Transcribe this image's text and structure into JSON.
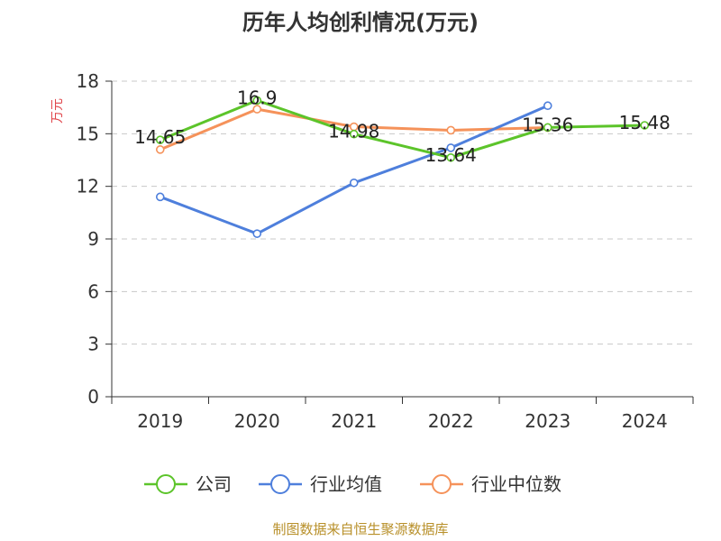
{
  "chart_data": {
    "type": "line",
    "title": "历年人均创利情况(万元)",
    "ylabel": "万元",
    "xlabel": "",
    "categories": [
      "2019",
      "2020",
      "2021",
      "2022",
      "2023",
      "2024"
    ],
    "ylim": [
      0,
      18
    ],
    "yticks": [
      0,
      3,
      6,
      9,
      12,
      15,
      18
    ],
    "grid": true,
    "legend_position": "bottom",
    "series": [
      {
        "name": "公司",
        "color": "#5cc42a",
        "values": [
          14.65,
          16.9,
          14.98,
          13.64,
          15.36,
          15.48
        ],
        "show_labels": true
      },
      {
        "name": "行业均值",
        "color": "#4e7fdc",
        "values": [
          11.4,
          9.3,
          12.2,
          14.2,
          16.6,
          null
        ],
        "show_labels": false
      },
      {
        "name": "行业中位数",
        "color": "#f5925a",
        "values": [
          14.1,
          16.4,
          15.4,
          15.2,
          15.35,
          null
        ],
        "show_labels": false
      }
    ]
  },
  "source": "制图数据来自恒生聚源数据库"
}
